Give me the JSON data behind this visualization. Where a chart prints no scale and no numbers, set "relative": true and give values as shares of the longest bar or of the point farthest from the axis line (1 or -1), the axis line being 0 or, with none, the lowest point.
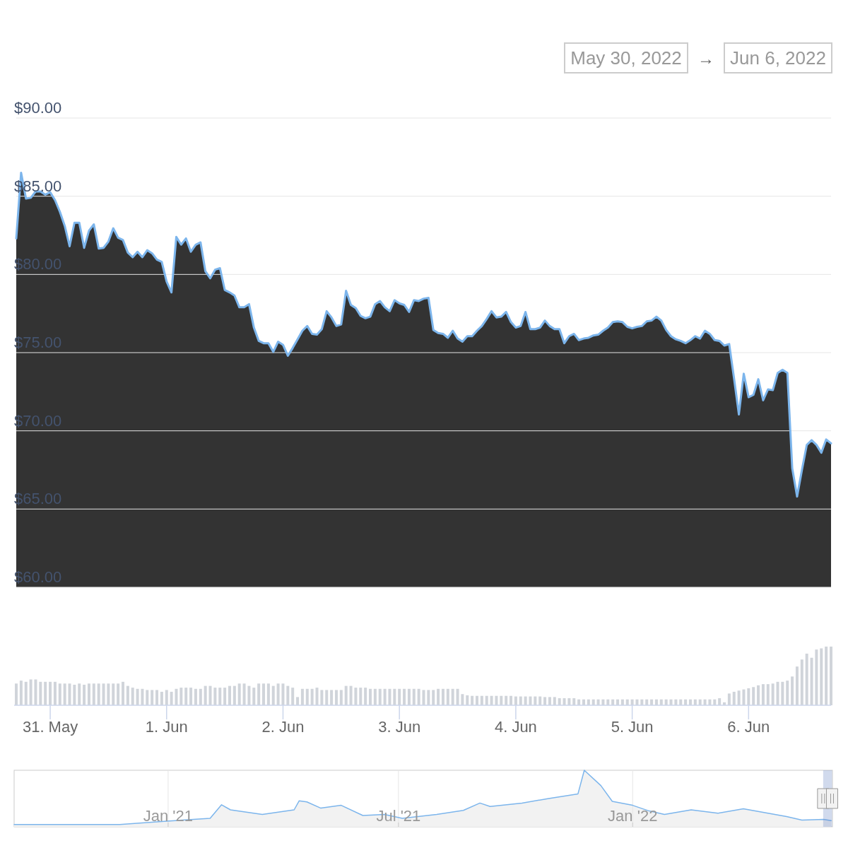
{
  "chart_data": [
    {
      "type": "other",
      "annotations": [
        "May 30, 2022",
        "→",
        "Jun 6, 2022"
      ]
    },
    {
      "type": "area",
      "color": "#7cb5ec",
      "xlim": [
        "2022-05-30T17:00",
        "2022-06-06T17:00"
      ],
      "ylim": [
        60,
        90
      ],
      "yticks": [
        {
          "value": 60,
          "label": "$60.00"
        },
        {
          "value": 65,
          "label": "$65.00"
        },
        {
          "value": 70,
          "label": "$70.00"
        },
        {
          "value": 75,
          "label": "$75.00"
        },
        {
          "value": 80,
          "label": "$80.00"
        },
        {
          "value": 85,
          "label": "$85.00"
        },
        {
          "value": 90,
          "label": "$90.00"
        }
      ],
      "grid": "y",
      "tick_labels": "y",
      "x": [
        "2022-05-30T17:00",
        "2022-05-30T18:00",
        "2022-05-30T19:00",
        "2022-05-30T20:00",
        "2022-05-30T21:00",
        "2022-05-30T22:00",
        "2022-05-30T23:00",
        "2022-05-31T00:00",
        "2022-05-31T01:00",
        "2022-05-31T02:00",
        "2022-05-31T03:00",
        "2022-05-31T04:00",
        "2022-05-31T05:00",
        "2022-05-31T06:00",
        "2022-05-31T07:00",
        "2022-05-31T08:00",
        "2022-05-31T09:00",
        "2022-05-31T10:00",
        "2022-05-31T11:00",
        "2022-05-31T12:00",
        "2022-05-31T13:00",
        "2022-05-31T14:00",
        "2022-05-31T15:00",
        "2022-05-31T16:00",
        "2022-05-31T17:00",
        "2022-05-31T18:00",
        "2022-05-31T19:00",
        "2022-05-31T20:00",
        "2022-05-31T21:00",
        "2022-05-31T22:00",
        "2022-05-31T23:00",
        "2022-06-01T00:00",
        "2022-06-01T01:00",
        "2022-06-01T02:00",
        "2022-06-01T03:00",
        "2022-06-01T04:00",
        "2022-06-01T05:00",
        "2022-06-01T06:00",
        "2022-06-01T07:00",
        "2022-06-01T08:00",
        "2022-06-01T09:00",
        "2022-06-01T10:00",
        "2022-06-01T11:00",
        "2022-06-01T12:00",
        "2022-06-01T13:00",
        "2022-06-01T14:00",
        "2022-06-01T15:00",
        "2022-06-01T16:00",
        "2022-06-01T17:00",
        "2022-06-01T18:00",
        "2022-06-01T19:00",
        "2022-06-01T20:00",
        "2022-06-01T21:00",
        "2022-06-01T22:00",
        "2022-06-01T23:00",
        "2022-06-02T00:00",
        "2022-06-02T01:00",
        "2022-06-02T02:00",
        "2022-06-02T03:00",
        "2022-06-02T04:00",
        "2022-06-02T05:00",
        "2022-06-02T06:00",
        "2022-06-02T07:00",
        "2022-06-02T08:00",
        "2022-06-02T09:00",
        "2022-06-02T10:00",
        "2022-06-02T11:00",
        "2022-06-02T12:00",
        "2022-06-02T13:00",
        "2022-06-02T14:00",
        "2022-06-02T15:00",
        "2022-06-02T16:00",
        "2022-06-02T17:00",
        "2022-06-02T18:00",
        "2022-06-02T19:00",
        "2022-06-02T20:00",
        "2022-06-02T21:00",
        "2022-06-02T22:00",
        "2022-06-02T23:00",
        "2022-06-03T00:00",
        "2022-06-03T01:00",
        "2022-06-03T02:00",
        "2022-06-03T03:00",
        "2022-06-03T04:00",
        "2022-06-03T05:00",
        "2022-06-03T06:00",
        "2022-06-03T07:00",
        "2022-06-03T08:00",
        "2022-06-03T09:00",
        "2022-06-03T10:00",
        "2022-06-03T11:00",
        "2022-06-03T12:00",
        "2022-06-03T13:00",
        "2022-06-03T14:00",
        "2022-06-03T15:00",
        "2022-06-03T16:00",
        "2022-06-03T17:00",
        "2022-06-03T18:00",
        "2022-06-03T19:00",
        "2022-06-03T20:00",
        "2022-06-03T21:00",
        "2022-06-03T22:00",
        "2022-06-03T23:00",
        "2022-06-04T00:00",
        "2022-06-04T01:00",
        "2022-06-04T02:00",
        "2022-06-04T03:00",
        "2022-06-04T04:00",
        "2022-06-04T05:00",
        "2022-06-04T06:00",
        "2022-06-04T07:00",
        "2022-06-04T08:00",
        "2022-06-04T09:00",
        "2022-06-04T10:00",
        "2022-06-04T11:00",
        "2022-06-04T12:00",
        "2022-06-04T13:00",
        "2022-06-04T14:00",
        "2022-06-04T15:00",
        "2022-06-04T16:00",
        "2022-06-04T17:00",
        "2022-06-04T18:00",
        "2022-06-04T19:00",
        "2022-06-04T20:00",
        "2022-06-04T21:00",
        "2022-06-04T22:00",
        "2022-06-04T23:00",
        "2022-06-05T00:00",
        "2022-06-05T01:00",
        "2022-06-05T02:00",
        "2022-06-05T03:00",
        "2022-06-05T04:00",
        "2022-06-05T05:00",
        "2022-06-05T06:00",
        "2022-06-05T07:00",
        "2022-06-05T08:00",
        "2022-06-05T09:00",
        "2022-06-05T10:00",
        "2022-06-05T11:00",
        "2022-06-05T12:00",
        "2022-06-05T13:00",
        "2022-06-05T14:00",
        "2022-06-05T15:00",
        "2022-06-05T16:00",
        "2022-06-05T17:00",
        "2022-06-05T18:00",
        "2022-06-05T19:00",
        "2022-06-05T20:00",
        "2022-06-05T21:00",
        "2022-06-05T22:00",
        "2022-06-05T23:00",
        "2022-06-06T00:00",
        "2022-06-06T01:00",
        "2022-06-06T02:00",
        "2022-06-06T03:00",
        "2022-06-06T04:00",
        "2022-06-06T05:00",
        "2022-06-06T06:00",
        "2022-06-06T07:00",
        "2022-06-06T08:00",
        "2022-06-06T09:00",
        "2022-06-06T10:00",
        "2022-06-06T11:00",
        "2022-06-06T12:00",
        "2022-06-06T13:00",
        "2022-06-06T14:00",
        "2022-06-06T15:00",
        "2022-06-06T16:00",
        "2022-06-06T17:00"
      ],
      "values": [
        82.3,
        86.5,
        84.85,
        84.9,
        85.3,
        85.3,
        85.1,
        85.25,
        84.75,
        84.0,
        83.1,
        81.8,
        83.3,
        83.3,
        81.7,
        82.8,
        83.2,
        81.65,
        81.7,
        82.1,
        82.95,
        82.35,
        82.2,
        81.4,
        81.1,
        81.45,
        81.1,
        81.55,
        81.35,
        80.95,
        80.8,
        79.55,
        78.85,
        82.4,
        81.9,
        82.3,
        81.45,
        81.9,
        82.05,
        80.2,
        79.75,
        80.3,
        80.4,
        79.0,
        78.85,
        78.65,
        77.9,
        77.9,
        78.1,
        76.6,
        75.75,
        75.6,
        75.6,
        75.05,
        75.7,
        75.5,
        74.8,
        75.3,
        75.85,
        76.4,
        76.7,
        76.2,
        76.15,
        76.5,
        77.65,
        77.25,
        76.7,
        76.8,
        78.95,
        78.05,
        77.85,
        77.35,
        77.2,
        77.3,
        78.1,
        78.3,
        77.9,
        77.65,
        78.35,
        78.15,
        78.05,
        77.6,
        78.35,
        78.3,
        78.45,
        78.5,
        76.45,
        76.25,
        76.2,
        75.95,
        76.4,
        75.9,
        75.7,
        76.05,
        76.05,
        76.4,
        76.7,
        77.15,
        77.65,
        77.25,
        77.3,
        77.6,
        76.95,
        76.6,
        76.7,
        77.6,
        76.5,
        76.5,
        76.6,
        77.05,
        76.7,
        76.5,
        76.5,
        75.6,
        76.05,
        76.2,
        75.8,
        75.9,
        75.95,
        76.1,
        76.15,
        76.4,
        76.6,
        76.95,
        77.0,
        76.95,
        76.65,
        76.55,
        76.65,
        76.7,
        77.0,
        77.05,
        77.3,
        77.05,
        76.45,
        76.05,
        75.85,
        75.75,
        75.6,
        75.8,
        76.05,
        75.9,
        76.4,
        76.2,
        75.8,
        75.75,
        75.45,
        75.55,
        73.35,
        71.05,
        73.65,
        72.15,
        72.3,
        73.3,
        71.95,
        72.65,
        72.6,
        73.7,
        73.9,
        73.7,
        67.6,
        65.8,
        67.5,
        69.1,
        69.4,
        69.1,
        68.6,
        69.45,
        69.2
      ]
    },
    {
      "type": "bar",
      "relative": true,
      "color": "#d0d4da",
      "xlim": [
        "2022-05-30T17:00",
        "2022-06-06T17:00"
      ],
      "tick_labels": "x",
      "xticks": [
        {
          "value": "2022-05-31",
          "label": "31. May"
        },
        {
          "value": "2022-06-01",
          "label": "1. Jun"
        },
        {
          "value": "2022-06-02",
          "label": "2. Jun"
        },
        {
          "value": "2022-06-03",
          "label": "3. Jun"
        },
        {
          "value": "2022-06-04",
          "label": "4. Jun"
        },
        {
          "value": "2022-06-05",
          "label": "5. Jun"
        },
        {
          "value": "2022-06-06",
          "label": "6. Jun"
        }
      ],
      "x": [
        "2022-05-30T17:00",
        "2022-05-30T18:00",
        "2022-05-30T19:00",
        "2022-05-30T20:00",
        "2022-05-30T21:00",
        "2022-05-30T22:00",
        "2022-05-30T23:00",
        "2022-05-31T00:00",
        "2022-05-31T01:00",
        "2022-05-31T02:00",
        "2022-05-31T03:00",
        "2022-05-31T04:00",
        "2022-05-31T05:00",
        "2022-05-31T06:00",
        "2022-05-31T07:00",
        "2022-05-31T08:00",
        "2022-05-31T09:00",
        "2022-05-31T10:00",
        "2022-05-31T11:00",
        "2022-05-31T12:00",
        "2022-05-31T13:00",
        "2022-05-31T14:00",
        "2022-05-31T15:00",
        "2022-05-31T16:00",
        "2022-05-31T17:00",
        "2022-05-31T18:00",
        "2022-05-31T19:00",
        "2022-05-31T20:00",
        "2022-05-31T21:00",
        "2022-05-31T22:00",
        "2022-05-31T23:00",
        "2022-06-01T00:00",
        "2022-06-01T01:00",
        "2022-06-01T02:00",
        "2022-06-01T03:00",
        "2022-06-01T04:00",
        "2022-06-01T05:00",
        "2022-06-01T06:00",
        "2022-06-01T07:00",
        "2022-06-01T08:00",
        "2022-06-01T09:00",
        "2022-06-01T10:00",
        "2022-06-01T11:00",
        "2022-06-01T12:00",
        "2022-06-01T13:00",
        "2022-06-01T14:00",
        "2022-06-01T15:00",
        "2022-06-01T16:00",
        "2022-06-01T17:00",
        "2022-06-01T18:00",
        "2022-06-01T19:00",
        "2022-06-01T20:00",
        "2022-06-01T21:00",
        "2022-06-01T22:00",
        "2022-06-01T23:00",
        "2022-06-02T00:00",
        "2022-06-02T01:00",
        "2022-06-02T02:00",
        "2022-06-02T03:00",
        "2022-06-02T04:00",
        "2022-06-02T05:00",
        "2022-06-02T06:00",
        "2022-06-02T07:00",
        "2022-06-02T08:00",
        "2022-06-02T09:00",
        "2022-06-02T10:00",
        "2022-06-02T11:00",
        "2022-06-02T12:00",
        "2022-06-02T13:00",
        "2022-06-02T14:00",
        "2022-06-02T15:00",
        "2022-06-02T16:00",
        "2022-06-02T17:00",
        "2022-06-02T18:00",
        "2022-06-02T19:00",
        "2022-06-02T20:00",
        "2022-06-02T21:00",
        "2022-06-02T22:00",
        "2022-06-02T23:00",
        "2022-06-03T00:00",
        "2022-06-03T01:00",
        "2022-06-03T02:00",
        "2022-06-03T03:00",
        "2022-06-03T04:00",
        "2022-06-03T05:00",
        "2022-06-03T06:00",
        "2022-06-03T07:00",
        "2022-06-03T08:00",
        "2022-06-03T09:00",
        "2022-06-03T10:00",
        "2022-06-03T11:00",
        "2022-06-03T12:00",
        "2022-06-03T13:00",
        "2022-06-03T14:00",
        "2022-06-03T15:00",
        "2022-06-03T16:00",
        "2022-06-03T17:00",
        "2022-06-03T18:00",
        "2022-06-03T19:00",
        "2022-06-03T20:00",
        "2022-06-03T21:00",
        "2022-06-03T22:00",
        "2022-06-03T23:00",
        "2022-06-04T00:00",
        "2022-06-04T01:00",
        "2022-06-04T02:00",
        "2022-06-04T03:00",
        "2022-06-04T04:00",
        "2022-06-04T05:00",
        "2022-06-04T06:00",
        "2022-06-04T07:00",
        "2022-06-04T08:00",
        "2022-06-04T09:00",
        "2022-06-04T10:00",
        "2022-06-04T11:00",
        "2022-06-04T12:00",
        "2022-06-04T13:00",
        "2022-06-04T14:00",
        "2022-06-04T15:00",
        "2022-06-04T16:00",
        "2022-06-04T17:00",
        "2022-06-04T18:00",
        "2022-06-04T19:00",
        "2022-06-04T20:00",
        "2022-06-04T21:00",
        "2022-06-04T22:00",
        "2022-06-04T23:00",
        "2022-06-05T00:00",
        "2022-06-05T01:00",
        "2022-06-05T02:00",
        "2022-06-05T03:00",
        "2022-06-05T04:00",
        "2022-06-05T05:00",
        "2022-06-05T06:00",
        "2022-06-05T07:00",
        "2022-06-05T08:00",
        "2022-06-05T09:00",
        "2022-06-05T10:00",
        "2022-06-05T11:00",
        "2022-06-05T12:00",
        "2022-06-05T13:00",
        "2022-06-05T14:00",
        "2022-06-05T15:00",
        "2022-06-05T16:00",
        "2022-06-05T17:00",
        "2022-06-05T18:00",
        "2022-06-05T19:00",
        "2022-06-05T20:00",
        "2022-06-05T21:00",
        "2022-06-05T22:00",
        "2022-06-05T23:00",
        "2022-06-06T00:00",
        "2022-06-06T01:00",
        "2022-06-06T02:00",
        "2022-06-06T03:00",
        "2022-06-06T04:00",
        "2022-06-06T05:00",
        "2022-06-06T06:00",
        "2022-06-06T07:00",
        "2022-06-06T08:00",
        "2022-06-06T09:00",
        "2022-06-06T10:00",
        "2022-06-06T11:00",
        "2022-06-06T12:00",
        "2022-06-06T13:00",
        "2022-06-06T14:00",
        "2022-06-06T15:00",
        "2022-06-06T16:00",
        "2022-06-06T17:00"
      ],
      "values": [
        0.37,
        0.42,
        0.4,
        0.44,
        0.44,
        0.4,
        0.4,
        0.4,
        0.4,
        0.37,
        0.37,
        0.37,
        0.35,
        0.37,
        0.35,
        0.37,
        0.37,
        0.37,
        0.37,
        0.37,
        0.37,
        0.37,
        0.4,
        0.33,
        0.3,
        0.28,
        0.28,
        0.26,
        0.26,
        0.26,
        0.23,
        0.26,
        0.23,
        0.28,
        0.3,
        0.3,
        0.3,
        0.28,
        0.28,
        0.33,
        0.33,
        0.3,
        0.3,
        0.3,
        0.33,
        0.33,
        0.37,
        0.37,
        0.33,
        0.3,
        0.37,
        0.37,
        0.37,
        0.33,
        0.37,
        0.37,
        0.33,
        0.3,
        0.14,
        0.28,
        0.28,
        0.28,
        0.3,
        0.26,
        0.26,
        0.26,
        0.26,
        0.26,
        0.33,
        0.33,
        0.3,
        0.3,
        0.3,
        0.28,
        0.28,
        0.28,
        0.28,
        0.28,
        0.28,
        0.28,
        0.28,
        0.28,
        0.28,
        0.28,
        0.26,
        0.26,
        0.26,
        0.28,
        0.28,
        0.28,
        0.28,
        0.28,
        0.19,
        0.17,
        0.16,
        0.16,
        0.16,
        0.16,
        0.16,
        0.16,
        0.16,
        0.16,
        0.16,
        0.15,
        0.15,
        0.15,
        0.15,
        0.15,
        0.15,
        0.14,
        0.14,
        0.14,
        0.12,
        0.12,
        0.12,
        0.12,
        0.1,
        0.1,
        0.1,
        0.1,
        0.1,
        0.1,
        0.1,
        0.1,
        0.1,
        0.1,
        0.1,
        0.1,
        0.1,
        0.1,
        0.1,
        0.1,
        0.1,
        0.1,
        0.1,
        0.1,
        0.1,
        0.1,
        0.1,
        0.1,
        0.1,
        0.1,
        0.1,
        0.1,
        0.1,
        0.12,
        0.05,
        0.2,
        0.23,
        0.25,
        0.27,
        0.29,
        0.31,
        0.34,
        0.36,
        0.36,
        0.37,
        0.4,
        0.4,
        0.42,
        0.49,
        0.66,
        0.78,
        0.88,
        0.81,
        0.95,
        0.97,
        1,
        1
      ]
    },
    {
      "type": "area",
      "relative": true,
      "color": "#7cb5ec",
      "xlim": [
        "2020-09-02",
        "2022-06-07"
      ],
      "grid": "x",
      "tick_labels": "x",
      "bands": [
        {
          "axis": "x",
          "from": "2022-05-30T17:00",
          "to": "2022-06-06T17:00",
          "color": "#6685c2"
        }
      ],
      "xticks": [
        {
          "value": "2021-01-01",
          "label": "Jan '21"
        },
        {
          "value": "2021-07-01",
          "label": "Jul '21"
        },
        {
          "value": "2022-01-01",
          "label": "Jan '22"
        }
      ],
      "x": [
        "2020-09-02",
        "2020-11-24",
        "2020-12-31",
        "2021-02-03",
        "2021-02-12",
        "2021-02-19",
        "2021-03-16",
        "2021-04-10",
        "2021-04-14",
        "2021-04-20",
        "2021-05-01",
        "2021-05-17",
        "2021-06-03",
        "2021-06-20",
        "2021-07-04",
        "2021-07-31",
        "2021-08-21",
        "2021-09-03",
        "2021-09-11",
        "2021-10-06",
        "2021-10-27",
        "2021-11-19",
        "2021-11-24",
        "2021-12-07",
        "2021-12-16",
        "2022-01-01",
        "2022-01-14",
        "2022-01-26",
        "2022-02-16",
        "2022-03-09",
        "2022-03-29",
        "2022-04-15",
        "2022-05-02",
        "2022-05-14",
        "2022-05-31",
        "2022-06-06"
      ],
      "values": [
        0.04,
        0.04,
        0.1,
        0.15,
        0.39,
        0.3,
        0.22,
        0.3,
        0.46,
        0.44,
        0.33,
        0.38,
        0.2,
        0.22,
        0.15,
        0.22,
        0.29,
        0.42,
        0.36,
        0.42,
        0.5,
        0.58,
        1,
        0.73,
        0.45,
        0.38,
        0.28,
        0.22,
        0.3,
        0.24,
        0.32,
        0.25,
        0.18,
        0.12,
        0.13,
        0.11
      ]
    }
  ]
}
